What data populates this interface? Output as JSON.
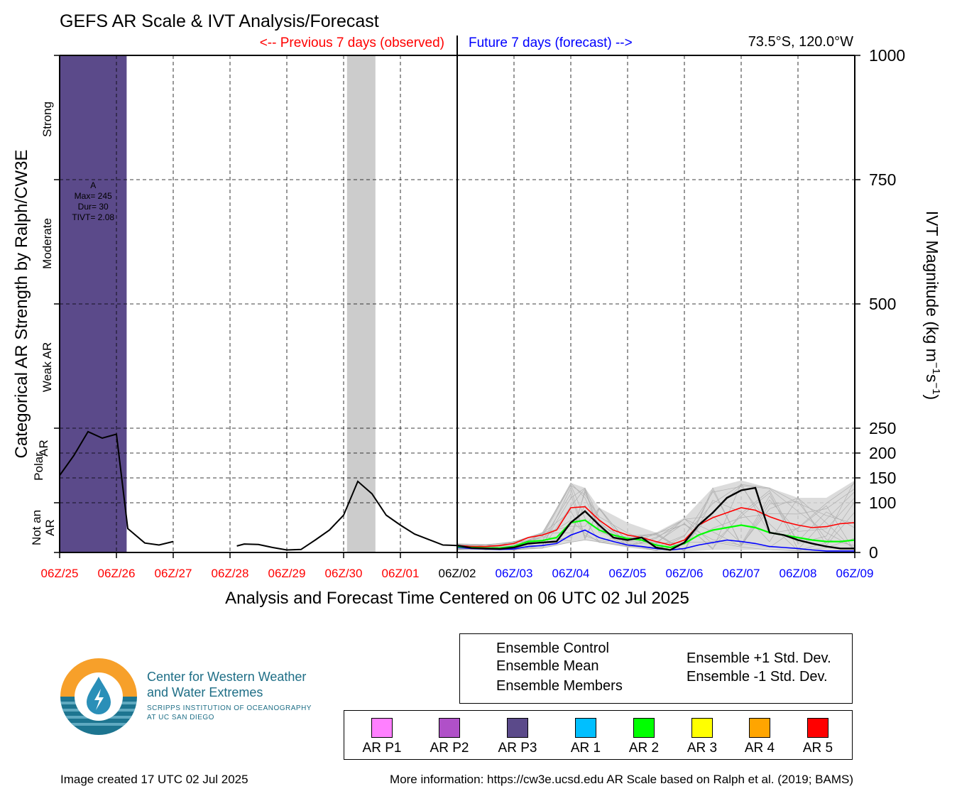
{
  "title": "GEFS AR Scale & IVT Analysis/Forecast",
  "previous_label": "<-- Previous 7 days (observed)",
  "future_label": "Future 7 days (forecast) -->",
  "location": "73.5°S, 120.0°W",
  "colors": {
    "observed_text": "#ff0000",
    "forecast_text": "#0000ff",
    "ar_p3": "#5b4a8a",
    "null_shade": "#cccccc",
    "control": "#000000",
    "mean": "#00ff00",
    "plus_std": "#ff0000",
    "minus_std": "#0000ff",
    "members": "#b0b0b0"
  },
  "chart_data": {
    "type": "line",
    "xlabel": "Analysis and Forecast Time Centered on 06 UTC 02 Jul 2025",
    "ylabel_left": "Categorical AR Strength by Ralph/CW3E",
    "ylabel_right_main": "IVT Magnitude (kg m",
    "ylabel_right_sup1": "−1",
    "ylabel_right_mid": "s",
    "ylabel_right_sup2": "−1",
    "ylabel_right_end": ")",
    "x_unit": "days relative to 06Z/25",
    "xlim": [
      0,
      14
    ],
    "ylim": [
      0,
      1000
    ],
    "grid": true,
    "x_ticks": [
      {
        "x": 0,
        "label": "06Z/25",
        "color": "#ff0000"
      },
      {
        "x": 1,
        "label": "06Z/26",
        "color": "#ff0000"
      },
      {
        "x": 2,
        "label": "06Z/27",
        "color": "#ff0000"
      },
      {
        "x": 3,
        "label": "06Z/28",
        "color": "#ff0000"
      },
      {
        "x": 4,
        "label": "06Z/29",
        "color": "#ff0000"
      },
      {
        "x": 5,
        "label": "06Z/30",
        "color": "#ff0000"
      },
      {
        "x": 6,
        "label": "06Z/01",
        "color": "#ff0000"
      },
      {
        "x": 7,
        "label": "06Z/02",
        "color": "#000000"
      },
      {
        "x": 8,
        "label": "06Z/03",
        "color": "#0000ff"
      },
      {
        "x": 9,
        "label": "06Z/04",
        "color": "#0000ff"
      },
      {
        "x": 10,
        "label": "06Z/05",
        "color": "#0000ff"
      },
      {
        "x": 11,
        "label": "06Z/06",
        "color": "#0000ff"
      },
      {
        "x": 12,
        "label": "06Z/07",
        "color": "#0000ff"
      },
      {
        "x": 13,
        "label": "06Z/08",
        "color": "#0000ff"
      },
      {
        "x": 14,
        "label": "06Z/09",
        "color": "#0000ff"
      }
    ],
    "y_ticks_right": [
      0,
      100,
      150,
      200,
      250,
      500,
      750,
      1000
    ],
    "categories_left": [
      {
        "label": "Strong",
        "from": 750,
        "to": 1000
      },
      {
        "label": "Moderate",
        "from": 500,
        "to": 750
      },
      {
        "label": "Weak AR",
        "from": 250,
        "to": 500
      },
      {
        "label": "Polar AR",
        "from": 100,
        "to": 250
      },
      {
        "label": "Not an AR",
        "from": 0,
        "to": 100
      }
    ],
    "category_lines": [
      0,
      100,
      250,
      500,
      750,
      1000
    ],
    "ar_event": {
      "x_start": -0.02,
      "x_end": 1.18,
      "category": "AR P3",
      "annotation": [
        "A",
        "Max= 245",
        "Dur= 30",
        "TIVT= 2.08"
      ]
    },
    "null_band": {
      "x_start": 5.06,
      "x_end": 5.56
    },
    "observed_segments": [
      [
        [
          0,
          155
        ],
        [
          0.25,
          195
        ],
        [
          0.5,
          243
        ],
        [
          0.75,
          230
        ],
        [
          1.0,
          238
        ],
        [
          1.2,
          48
        ],
        [
          1.5,
          19
        ],
        [
          1.75,
          15
        ],
        [
          2.0,
          22
        ]
      ],
      [
        [
          3.12,
          13
        ],
        [
          3.25,
          17
        ],
        [
          3.5,
          16
        ],
        [
          3.75,
          10
        ],
        [
          4.0,
          5
        ],
        [
          4.25,
          6
        ],
        [
          4.5,
          25
        ],
        [
          4.75,
          45
        ],
        [
          5.0,
          75
        ],
        [
          5.25,
          143
        ],
        [
          5.5,
          118
        ],
        [
          5.75,
          75
        ],
        [
          6.0,
          55
        ],
        [
          6.25,
          37
        ],
        [
          6.5,
          26
        ],
        [
          6.75,
          15
        ],
        [
          7.0,
          14
        ]
      ]
    ],
    "series": [
      {
        "name": "Ensemble Control",
        "values": [
          [
            7.0,
            14
          ],
          [
            7.25,
            9
          ],
          [
            7.5,
            8
          ],
          [
            7.75,
            7
          ],
          [
            8.0,
            10
          ],
          [
            8.25,
            18
          ],
          [
            8.5,
            20
          ],
          [
            8.75,
            22
          ],
          [
            9.0,
            60
          ],
          [
            9.25,
            83
          ],
          [
            9.5,
            55
          ],
          [
            9.75,
            30
          ],
          [
            10.0,
            25
          ],
          [
            10.25,
            30
          ],
          [
            10.5,
            10
          ],
          [
            10.75,
            5
          ],
          [
            11.0,
            20
          ],
          [
            11.25,
            55
          ],
          [
            11.5,
            80
          ],
          [
            11.75,
            110
          ],
          [
            12.0,
            125
          ],
          [
            12.25,
            130
          ],
          [
            12.5,
            40
          ],
          [
            12.75,
            35
          ],
          [
            13.0,
            25
          ],
          [
            13.25,
            18
          ],
          [
            13.5,
            12
          ],
          [
            13.75,
            8
          ],
          [
            14.0,
            8
          ]
        ]
      },
      {
        "name": "Ensemble Mean",
        "values": [
          [
            7.0,
            12
          ],
          [
            7.25,
            10
          ],
          [
            7.5,
            9
          ],
          [
            7.75,
            9
          ],
          [
            8.0,
            12
          ],
          [
            8.25,
            22
          ],
          [
            8.5,
            24
          ],
          [
            8.75,
            30
          ],
          [
            9.0,
            60
          ],
          [
            9.25,
            65
          ],
          [
            9.5,
            45
          ],
          [
            9.75,
            35
          ],
          [
            10.0,
            28
          ],
          [
            10.25,
            25
          ],
          [
            10.5,
            15
          ],
          [
            10.75,
            10
          ],
          [
            11.0,
            18
          ],
          [
            11.25,
            35
          ],
          [
            11.5,
            45
          ],
          [
            11.75,
            50
          ],
          [
            12.0,
            55
          ],
          [
            12.25,
            50
          ],
          [
            12.5,
            40
          ],
          [
            12.75,
            35
          ],
          [
            13.0,
            30
          ],
          [
            13.25,
            25
          ],
          [
            13.5,
            22
          ],
          [
            13.75,
            22
          ],
          [
            14.0,
            25
          ]
        ]
      },
      {
        "name": "Ensemble +1 Std. Dev.",
        "values": [
          [
            7.0,
            14
          ],
          [
            7.25,
            12
          ],
          [
            7.5,
            12
          ],
          [
            7.75,
            14
          ],
          [
            8.0,
            18
          ],
          [
            8.25,
            30
          ],
          [
            8.5,
            35
          ],
          [
            8.75,
            45
          ],
          [
            9.0,
            90
          ],
          [
            9.25,
            92
          ],
          [
            9.5,
            65
          ],
          [
            9.75,
            45
          ],
          [
            10.0,
            35
          ],
          [
            10.25,
            30
          ],
          [
            10.5,
            22
          ],
          [
            10.75,
            15
          ],
          [
            11.0,
            25
          ],
          [
            11.25,
            55
          ],
          [
            11.5,
            70
          ],
          [
            11.75,
            80
          ],
          [
            12.0,
            90
          ],
          [
            12.25,
            85
          ],
          [
            12.5,
            72
          ],
          [
            12.75,
            62
          ],
          [
            13.0,
            55
          ],
          [
            13.25,
            50
          ],
          [
            13.5,
            52
          ],
          [
            13.75,
            58
          ],
          [
            14.0,
            60
          ]
        ]
      },
      {
        "name": "Ensemble -1 Std. Dev.",
        "values": [
          [
            7.0,
            10
          ],
          [
            7.25,
            8
          ],
          [
            7.5,
            7
          ],
          [
            7.75,
            6
          ],
          [
            8.0,
            7
          ],
          [
            8.25,
            12
          ],
          [
            8.5,
            14
          ],
          [
            8.75,
            18
          ],
          [
            9.0,
            35
          ],
          [
            9.25,
            45
          ],
          [
            9.5,
            30
          ],
          [
            9.75,
            22
          ],
          [
            10.0,
            15
          ],
          [
            10.25,
            12
          ],
          [
            10.5,
            8
          ],
          [
            10.75,
            5
          ],
          [
            11.0,
            8
          ],
          [
            11.25,
            15
          ],
          [
            11.5,
            20
          ],
          [
            11.75,
            25
          ],
          [
            12.0,
            22
          ],
          [
            12.25,
            18
          ],
          [
            12.5,
            12
          ],
          [
            12.75,
            10
          ],
          [
            13.0,
            8
          ],
          [
            13.25,
            5
          ],
          [
            13.5,
            3
          ],
          [
            13.75,
            3
          ],
          [
            14.0,
            3
          ]
        ]
      }
    ],
    "members_envelope": {
      "x": [
        7.0,
        7.5,
        8.0,
        8.5,
        9.0,
        9.25,
        9.5,
        10.0,
        10.5,
        11.0,
        11.5,
        12.0,
        12.5,
        13.0,
        13.5,
        14.0
      ],
      "min": [
        5,
        4,
        4,
        8,
        20,
        25,
        20,
        10,
        3,
        2,
        5,
        5,
        5,
        2,
        1,
        1
      ],
      "max": [
        18,
        16,
        22,
        40,
        140,
        130,
        90,
        60,
        40,
        70,
        130,
        145,
        130,
        110,
        110,
        145
      ]
    },
    "legend": [
      {
        "label": "Ensemble Control",
        "color": "#000000"
      },
      {
        "label": "Ensemble Mean",
        "color": "#00ff00"
      },
      {
        "label": "Ensemble Members",
        "color": "#b0b0b0"
      },
      {
        "label": "Ensemble +1 Std. Dev.",
        "color": "#ff0000"
      },
      {
        "label": "Ensemble -1 Std. Dev.",
        "color": "#0000ff"
      }
    ]
  },
  "ar_scale_legend": [
    {
      "label": "AR P1",
      "color": "#ff80ff"
    },
    {
      "label": "AR P2",
      "color": "#b050c8"
    },
    {
      "label": "AR P3",
      "color": "#5b4a8a"
    },
    {
      "label": "AR 1",
      "color": "#00bfff"
    },
    {
      "label": "AR 2",
      "color": "#00ff00"
    },
    {
      "label": "AR 3",
      "color": "#ffff00"
    },
    {
      "label": "AR 4",
      "color": "#ffa500"
    },
    {
      "label": "AR 5",
      "color": "#ff0000"
    }
  ],
  "logo": {
    "line1": "Center for Western Weather",
    "line2": "and Water Extremes",
    "line3": "SCRIPPS INSTITUTION OF OCEANOGRAPHY",
    "line4": "AT UC SAN DIEGO"
  },
  "footer": {
    "created": "Image created 17 UTC 02 Jul 2025",
    "info": "More information: https://cw3e.ucsd.edu AR Scale based on Ralph et al. (2019; BAMS)"
  }
}
